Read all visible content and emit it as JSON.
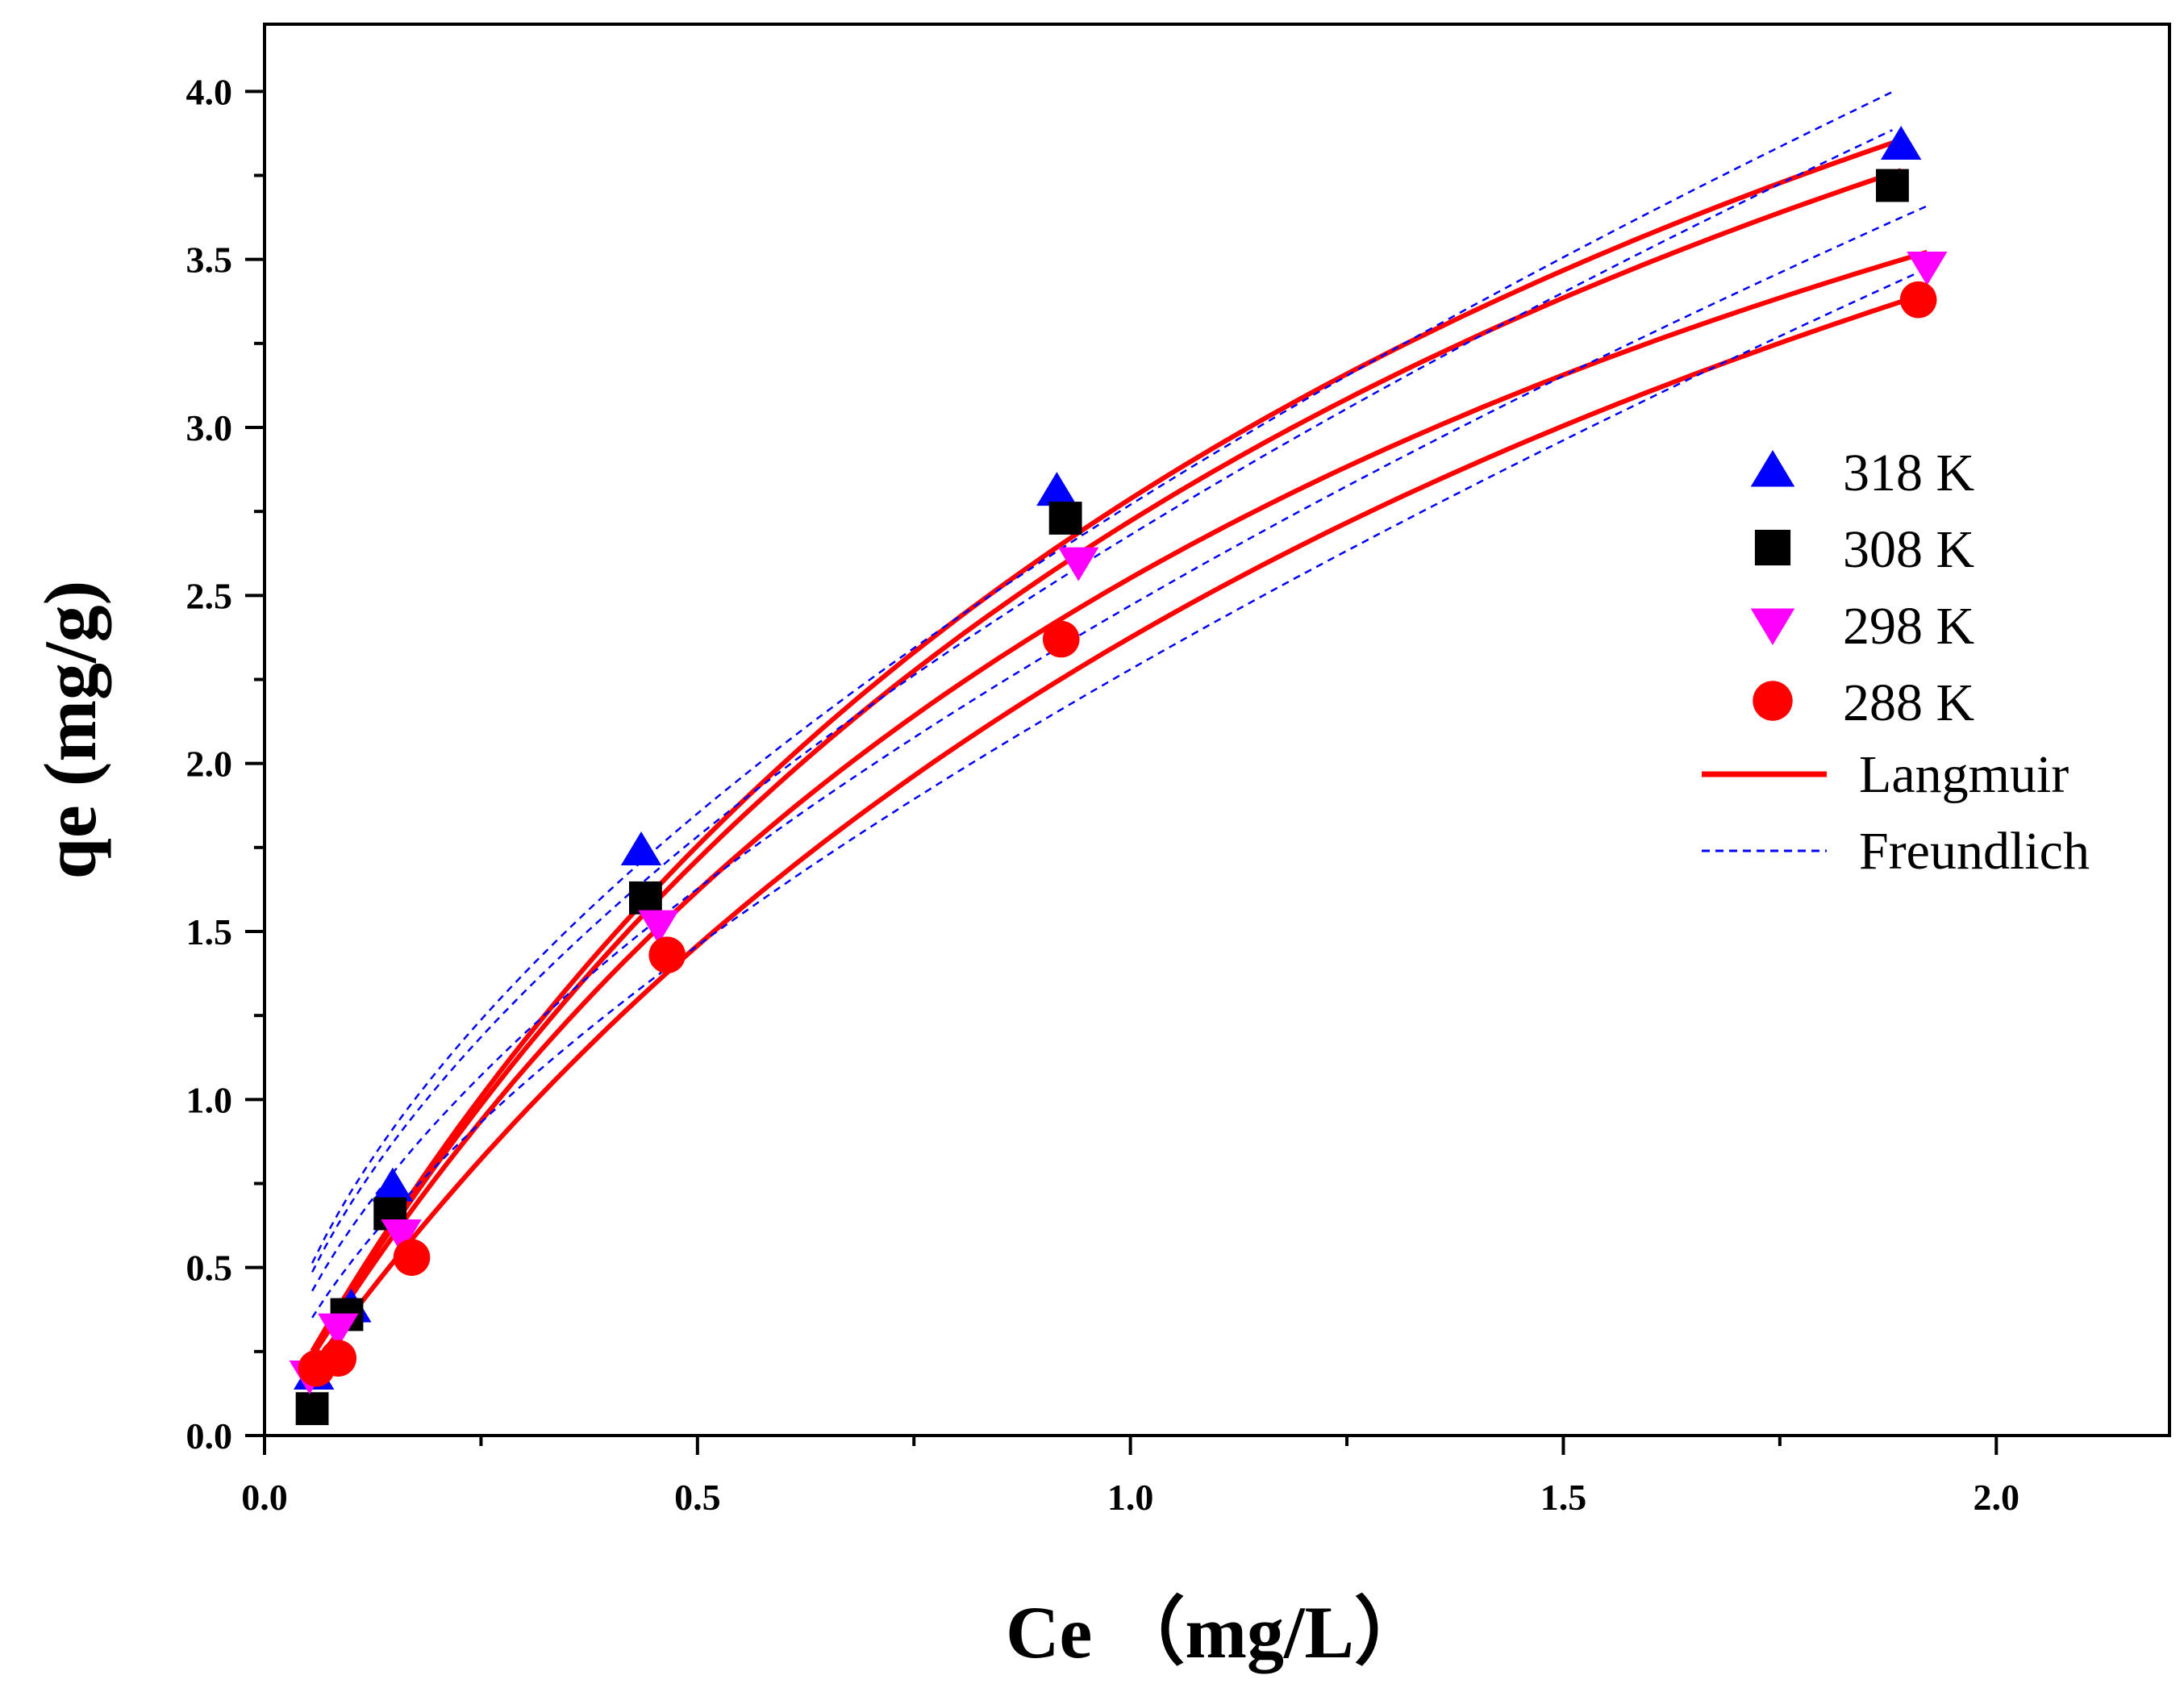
{
  "chart_data": {
    "type": "scatter",
    "title": "",
    "xlabel": "Ce （mg/L）",
    "ylabel": "qe (mg/g)",
    "xlim": [
      0.0,
      2.2
    ],
    "ylim": [
      0.0,
      4.2
    ],
    "x_ticks": [
      "0.0",
      "0.5",
      "1.0",
      "1.5",
      "2.0"
    ],
    "y_ticks": [
      "0.0",
      "0.5",
      "1.0",
      "1.5",
      "2.0",
      "2.5",
      "3.0",
      "3.5",
      "4.0"
    ],
    "x_tick_values": [
      0.0,
      0.5,
      1.0,
      1.5,
      2.0
    ],
    "y_tick_values": [
      0.0,
      0.5,
      1.0,
      1.5,
      2.0,
      2.5,
      3.0,
      3.5,
      4.0
    ],
    "legend_position": "right",
    "series": [
      {
        "name": "318 K",
        "marker": "triangle-up",
        "color": "#0000ff",
        "x": [
          0.057,
          0.1,
          0.148,
          0.435,
          0.915,
          1.89
        ],
        "y": [
          0.18,
          0.38,
          0.74,
          1.74,
          2.81,
          3.84
        ]
      },
      {
        "name": "308 K",
        "marker": "square",
        "color": "#000000",
        "x": [
          0.055,
          0.095,
          0.145,
          0.44,
          0.925,
          1.88
        ],
        "y": [
          0.08,
          0.36,
          0.66,
          1.6,
          2.73,
          3.72
        ]
      },
      {
        "name": "298 K",
        "marker": "triangle-down",
        "color": "#ff00ff",
        "x": [
          0.052,
          0.085,
          0.158,
          0.455,
          0.94,
          1.92
        ],
        "y": [
          0.18,
          0.32,
          0.6,
          1.52,
          2.6,
          3.48
        ]
      },
      {
        "name": "288 K",
        "marker": "circle",
        "color": "#ff0000",
        "x": [
          0.06,
          0.085,
          0.17,
          0.465,
          0.92,
          1.91
        ],
        "y": [
          0.2,
          0.23,
          0.53,
          1.43,
          2.37,
          3.38
        ]
      }
    ],
    "fits": [
      {
        "name": "Langmuir",
        "style": "solid",
        "color": "#ff0000",
        "curves": [
          {
            "for": "318 K",
            "model": "langmuir",
            "qm": 6.77,
            "kl": 0.7,
            "x_range": [
              0.055,
              1.89
            ]
          },
          {
            "for": "308 K",
            "model": "langmuir",
            "qm": 6.61,
            "kl": 0.7,
            "x_range": [
              0.055,
              1.89
            ]
          },
          {
            "for": "298 K",
            "model": "langmuir",
            "qm": 6.0,
            "kl": 0.74,
            "x_range": [
              0.055,
              1.92
            ]
          },
          {
            "for": "288 K",
            "model": "langmuir",
            "qm": 6.4,
            "kl": 0.59,
            "x_range": [
              0.055,
              1.92
            ]
          }
        ]
      },
      {
        "name": "Freundlich",
        "style": "dashed",
        "color": "#0000ff",
        "curves": [
          {
            "for": "318 K",
            "model": "freundlich",
            "kf": 2.77,
            "n": 1.72,
            "x_range": [
              0.055,
              1.88
            ]
          },
          {
            "for": "308 K",
            "model": "freundlich",
            "kf": 2.68,
            "n": 1.7,
            "x_range": [
              0.055,
              1.88
            ]
          },
          {
            "for": "298 K",
            "model": "freundlich",
            "kf": 2.47,
            "n": 1.66,
            "x_range": [
              0.055,
              1.92
            ]
          },
          {
            "for": "288 K",
            "model": "freundlich",
            "kf": 2.28,
            "n": 1.55,
            "x_range": [
              0.055,
              1.92
            ]
          }
        ]
      }
    ],
    "legend": [
      "318 K",
      "308 K",
      "298 K",
      "288 K",
      "Langmuir",
      "Freundlich"
    ]
  }
}
